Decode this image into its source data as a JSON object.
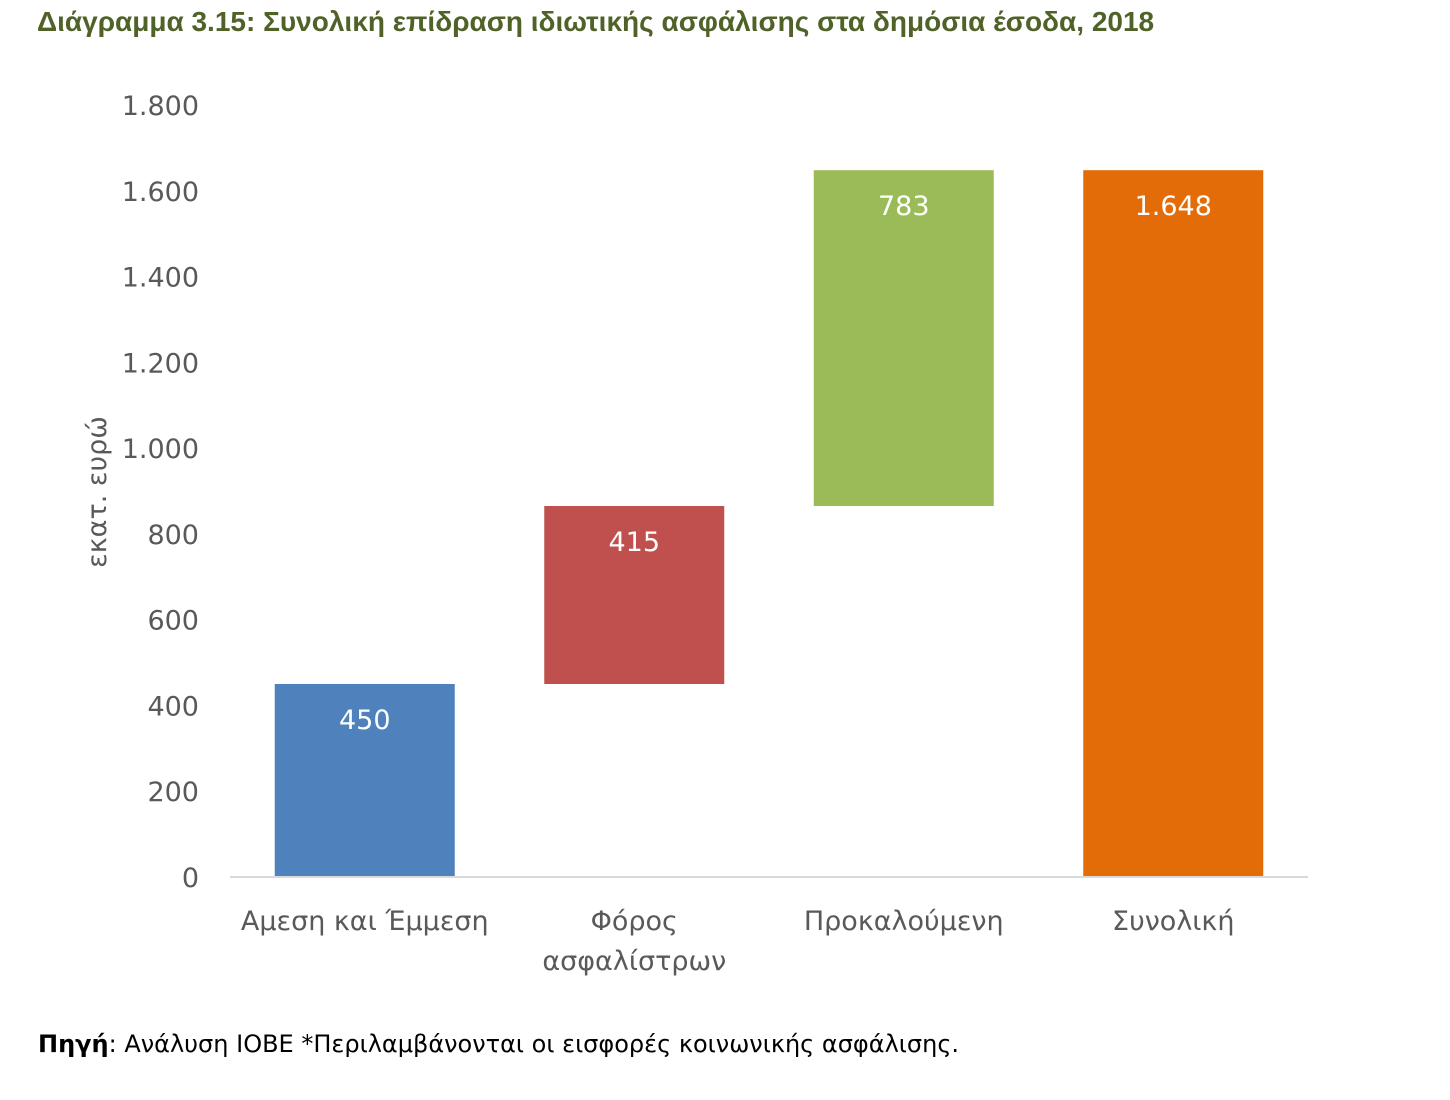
{
  "title": "Διάγραμμα 3.15: Συνολική επίδραση ιδιωτικής ασφάλισης στα δημόσια έσοδα, 2018",
  "source": {
    "label": "Πηγή",
    "text": ": Ανάλυση ΙΟΒΕ *Περιλαμβάνονται οι εισφορές κοινωνικής ασφάλισης."
  },
  "chart_data": {
    "type": "bar",
    "subtype": "waterfall",
    "ylabel": "εκατ. ευρώ",
    "ylim": [
      0,
      1800
    ],
    "yticks": [
      0,
      200,
      400,
      600,
      800,
      1000,
      1200,
      1400,
      1600,
      1800
    ],
    "ytick_labels": [
      "0",
      "200",
      "400",
      "600",
      "800",
      "1.000",
      "1.200",
      "1.400",
      "1.600",
      "1.800"
    ],
    "grid": false,
    "categories": [
      [
        "Αμεση και Έμμεση"
      ],
      [
        "Φόρος",
        "ασφαλίστρων"
      ],
      [
        "Προκαλούμενη"
      ],
      [
        "Συνολική"
      ]
    ],
    "bars": [
      {
        "base": 0,
        "value": 450,
        "label": "450",
        "color": "#4f81bd"
      },
      {
        "base": 450,
        "value": 415,
        "label": "415",
        "color": "#c0504d"
      },
      {
        "base": 865,
        "value": 783,
        "label": "783",
        "color": "#9bbb59"
      },
      {
        "base": 0,
        "value": 1648,
        "label": "1.648",
        "color": "#e36c09"
      }
    ]
  }
}
